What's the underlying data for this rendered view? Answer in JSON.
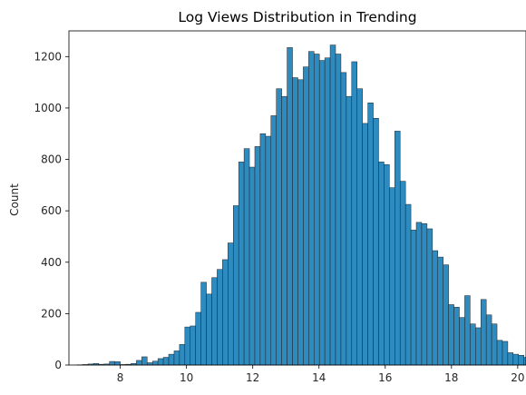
{
  "chart_data": {
    "type": "bar",
    "title": "Log Views Distribution in Trending",
    "xlabel": "",
    "ylabel": "Count",
    "xlim": [
      6.45,
      20.25
    ],
    "ylim": [
      0,
      1300
    ],
    "xticks": [
      8,
      10,
      12,
      14,
      16,
      18,
      20
    ],
    "yticks": [
      0,
      200,
      400,
      600,
      800,
      1000,
      1200
    ],
    "grid": false,
    "bar_color": "#2e8bc0",
    "edge_color": "#222222",
    "bin_start": 6.7,
    "bin_width": 0.1625,
    "values": [
      1,
      2,
      4,
      6,
      3,
      4,
      14,
      13,
      2,
      3,
      6,
      18,
      32,
      9,
      15,
      25,
      30,
      42,
      55,
      80,
      148,
      152,
      205,
      322,
      276,
      340,
      372,
      410,
      475,
      620,
      790,
      842,
      770,
      850,
      900,
      890,
      970,
      1075,
      1045,
      1235,
      1118,
      1110,
      1160,
      1220,
      1210,
      1185,
      1195,
      1245,
      1210,
      1138,
      1045,
      1180,
      1075,
      940,
      1020,
      960,
      790,
      780,
      690,
      910,
      715,
      625,
      525,
      555,
      550,
      530,
      445,
      420,
      390,
      235,
      225,
      185,
      270,
      160,
      145,
      255,
      195,
      160,
      96,
      92,
      48,
      42,
      38,
      30,
      28,
      10,
      5
    ]
  }
}
